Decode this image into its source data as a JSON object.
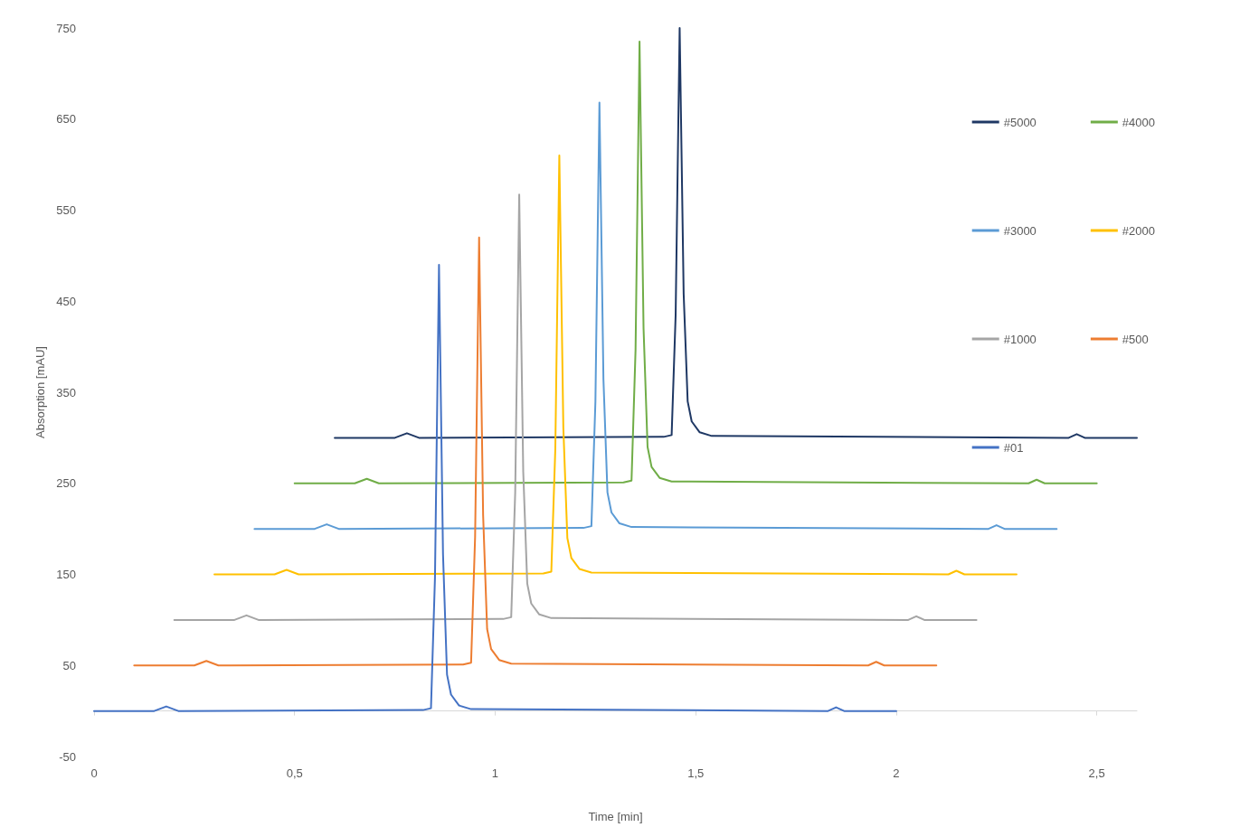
{
  "chart_data": {
    "type": "line",
    "xlabel": "Time [min]",
    "ylabel": "Absorption [mAU]",
    "xlim": [
      0,
      2.6
    ],
    "ylim": [
      -50,
      750
    ],
    "xticks": [
      0,
      {
        "value": 0.5,
        "label": "0,5"
      },
      1,
      {
        "value": 1.5,
        "label": "1,5"
      },
      2,
      {
        "value": 2.5,
        "label": "2,5"
      }
    ],
    "yticks": [
      -50,
      50,
      150,
      250,
      350,
      450,
      550,
      650,
      750
    ],
    "grid": false,
    "legend": "top right",
    "marker": "none",
    "line_style": "solid",
    "series": [
      {
        "name": "#5000",
        "color": "#1f3864",
        "x": [
          0.6,
          0.75,
          0.78,
          0.81,
          1.42,
          1.44,
          1.45,
          1.46,
          1.47,
          1.48,
          1.49,
          1.51,
          1.54,
          2.43,
          2.45,
          2.47,
          2.6
        ],
        "values": [
          300,
          300,
          305,
          300,
          301,
          303,
          435,
          750,
          458,
          340,
          318,
          306,
          302,
          300,
          304,
          300,
          300
        ]
      },
      {
        "name": "#4000",
        "color": "#70ad47",
        "x": [
          0.5,
          0.65,
          0.68,
          0.71,
          1.32,
          1.34,
          1.35,
          1.36,
          1.37,
          1.38,
          1.39,
          1.41,
          1.44,
          2.33,
          2.35,
          2.37,
          2.5
        ],
        "values": [
          250,
          250,
          255,
          250,
          251,
          253,
          396,
          735,
          420,
          290,
          268,
          256,
          252,
          250,
          254,
          250,
          250
        ]
      },
      {
        "name": "#3000",
        "color": "#5b9bd5",
        "x": [
          0.4,
          0.55,
          0.58,
          0.61,
          1.22,
          1.24,
          1.25,
          1.26,
          1.27,
          1.28,
          1.29,
          1.31,
          1.34,
          2.23,
          2.25,
          2.27,
          2.4
        ],
        "values": [
          200,
          200,
          205,
          200,
          201,
          203,
          340,
          668,
          364,
          240,
          218,
          206,
          202,
          200,
          204,
          200,
          200
        ]
      },
      {
        "name": "#2000",
        "color": "#ffc000",
        "x": [
          0.3,
          0.45,
          0.48,
          0.51,
          1.12,
          1.14,
          1.15,
          1.16,
          1.17,
          1.18,
          1.19,
          1.21,
          1.24,
          2.13,
          2.15,
          2.17,
          2.3
        ],
        "values": [
          150,
          150,
          155,
          150,
          151,
          153,
          288,
          610,
          311,
          190,
          168,
          156,
          152,
          150,
          154,
          150,
          150
        ]
      },
      {
        "name": "#1000",
        "color": "#a5a5a5",
        "x": [
          0.2,
          0.35,
          0.38,
          0.41,
          1.02,
          1.04,
          1.05,
          1.06,
          1.07,
          1.08,
          1.09,
          1.11,
          1.14,
          2.03,
          2.05,
          2.07,
          2.2
        ],
        "values": [
          100,
          100,
          105,
          100,
          101,
          103,
          240,
          567,
          263,
          140,
          118,
          106,
          102,
          100,
          104,
          100,
          100
        ]
      },
      {
        "name": "#500",
        "color": "#ed7d31",
        "x": [
          0.1,
          0.25,
          0.28,
          0.31,
          0.92,
          0.94,
          0.95,
          0.96,
          0.97,
          0.98,
          0.99,
          1.01,
          1.04,
          1.93,
          1.95,
          1.97,
          2.1
        ],
        "values": [
          50,
          50,
          55,
          50,
          51,
          53,
          191,
          520,
          215,
          90,
          68,
          56,
          52,
          50,
          54,
          50,
          50
        ]
      },
      {
        "name": "#01",
        "color": "#4472c4",
        "x": [
          0,
          0.15,
          0.18,
          0.21,
          0.82,
          0.84,
          0.85,
          0.86,
          0.87,
          0.88,
          0.89,
          0.91,
          0.94,
          1.83,
          1.85,
          1.87,
          2.0
        ],
        "values": [
          0,
          0,
          5,
          0,
          1,
          3,
          147,
          490,
          172,
          40,
          18,
          6,
          2,
          0,
          4,
          0,
          0
        ]
      }
    ]
  }
}
